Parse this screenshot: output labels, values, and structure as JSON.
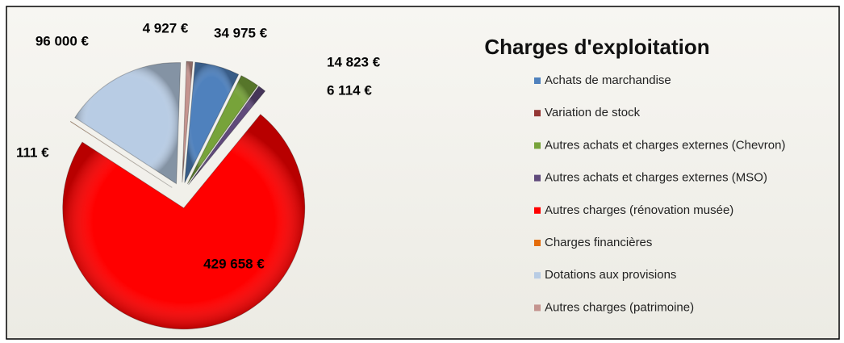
{
  "chart_data": {
    "type": "pie",
    "title": "Charges d'exploitation",
    "categories": [
      "Achats de marchandise",
      "Variation de stock",
      "Autres achats et charges externes (Chevron)",
      "Autres achats et charges externes (MSO)",
      "Autres charges (rénovation musée)",
      "Charges financières",
      "Dotations aux provisions",
      "Autres charges (patrimoine)"
    ],
    "values": [
      34975,
      null,
      14823,
      6114,
      429658,
      111,
      96000,
      4927
    ],
    "value_labels": [
      "34 975 €",
      null,
      "14 823 €",
      "6 114 €",
      "429 658 €",
      "111 €",
      "96 000 €",
      "4 927 €"
    ],
    "colors": [
      "#4f81bd",
      "#943634",
      "#77a33a",
      "#604a7b",
      "#ff0000",
      "#e46c0a",
      "#b8cce4",
      "#c4948f"
    ],
    "legend": "right"
  }
}
